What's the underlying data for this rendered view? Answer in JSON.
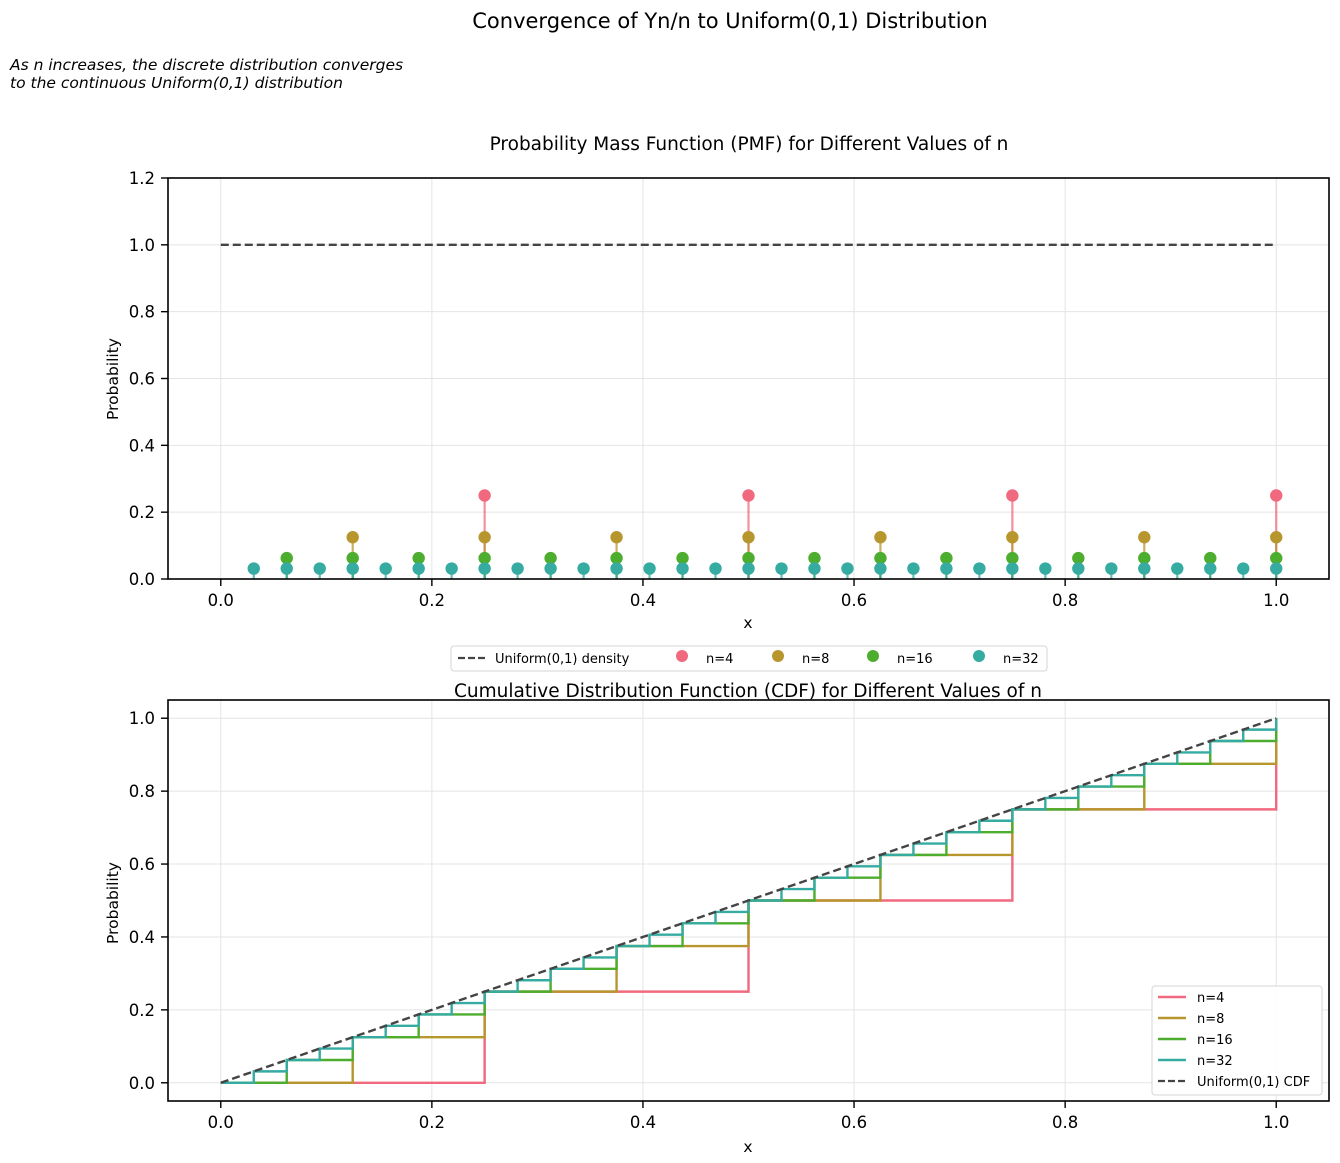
{
  "figure": {
    "title": "Convergence of Yn/n to Uniform(0,1) Distribution",
    "subtitle_line1": "As n increases, the discrete distribution converges",
    "subtitle_line2": "to the continuous Uniform(0,1) distribution"
  },
  "colors": {
    "n4": "#f0697e",
    "n8": "#b8962e",
    "n16": "#4cad2e",
    "n32": "#35aba2",
    "reference": "#444444",
    "grid": "#e4e4e4"
  },
  "chart_data": [
    {
      "type": "scatter",
      "subtype": "stem",
      "title": "Probability Mass Function (PMF) for Different Values of n",
      "xlabel": "x",
      "ylabel": "Probability",
      "xlim": [
        -0.05,
        1.05
      ],
      "ylim": [
        0,
        1.2
      ],
      "xticks": [
        "0.0",
        "0.2",
        "0.4",
        "0.6",
        "0.8",
        "1.0"
      ],
      "yticks": [
        "0.0",
        "0.2",
        "0.4",
        "0.6",
        "0.8",
        "1.0",
        "1.2"
      ],
      "grid": true,
      "legend_position": "below",
      "legend": [
        "Uniform(0,1) density",
        "n=4",
        "n=8",
        "n=16",
        "n=32"
      ],
      "reference_line": {
        "name": "Uniform(0,1) density",
        "x": [
          0,
          1
        ],
        "y": [
          1,
          1
        ],
        "style": "dashed"
      },
      "series": [
        {
          "name": "n=4",
          "n": 4,
          "x": [
            0.25,
            0.5,
            0.75,
            1.0
          ],
          "y": [
            0.25,
            0.25,
            0.25,
            0.25
          ]
        },
        {
          "name": "n=8",
          "n": 8,
          "x": [
            0.125,
            0.25,
            0.375,
            0.5,
            0.625,
            0.75,
            0.875,
            1.0
          ],
          "y": [
            0.125,
            0.125,
            0.125,
            0.125,
            0.125,
            0.125,
            0.125,
            0.125
          ]
        },
        {
          "name": "n=16",
          "n": 16,
          "x": [
            0.0625,
            0.125,
            0.1875,
            0.25,
            0.3125,
            0.375,
            0.4375,
            0.5,
            0.5625,
            0.625,
            0.6875,
            0.75,
            0.8125,
            0.875,
            0.9375,
            1.0
          ],
          "y": [
            0.0625,
            0.0625,
            0.0625,
            0.0625,
            0.0625,
            0.0625,
            0.0625,
            0.0625,
            0.0625,
            0.0625,
            0.0625,
            0.0625,
            0.0625,
            0.0625,
            0.0625,
            0.0625
          ]
        },
        {
          "name": "n=32",
          "n": 32,
          "x": [
            0.03125,
            0.0625,
            0.09375,
            0.125,
            0.15625,
            0.1875,
            0.21875,
            0.25,
            0.28125,
            0.3125,
            0.34375,
            0.375,
            0.40625,
            0.4375,
            0.46875,
            0.5,
            0.53125,
            0.5625,
            0.59375,
            0.625,
            0.65625,
            0.6875,
            0.71875,
            0.75,
            0.78125,
            0.8125,
            0.84375,
            0.875,
            0.90625,
            0.9375,
            0.96875,
            1.0
          ],
          "y": [
            0.03125,
            0.03125,
            0.03125,
            0.03125,
            0.03125,
            0.03125,
            0.03125,
            0.03125,
            0.03125,
            0.03125,
            0.03125,
            0.03125,
            0.03125,
            0.03125,
            0.03125,
            0.03125,
            0.03125,
            0.03125,
            0.03125,
            0.03125,
            0.03125,
            0.03125,
            0.03125,
            0.03125,
            0.03125,
            0.03125,
            0.03125,
            0.03125,
            0.03125,
            0.03125,
            0.03125,
            0.03125
          ]
        }
      ]
    },
    {
      "type": "line",
      "subtype": "step",
      "title": "Cumulative Distribution Function (CDF) for Different Values of n",
      "xlabel": "x",
      "ylabel": "Probability",
      "xlim": [
        -0.05,
        1.05
      ],
      "ylim": [
        -0.05,
        1.05
      ],
      "xticks": [
        "0.0",
        "0.2",
        "0.4",
        "0.6",
        "0.8",
        "1.0"
      ],
      "yticks": [
        "0.0",
        "0.2",
        "0.4",
        "0.6",
        "0.8",
        "1.0"
      ],
      "grid": true,
      "legend_position": "lower right",
      "legend": [
        "n=4",
        "n=8",
        "n=16",
        "n=32",
        "Uniform(0,1) CDF"
      ],
      "reference_line": {
        "name": "Uniform(0,1) CDF",
        "x": [
          0,
          1
        ],
        "y": [
          0,
          1
        ],
        "style": "dashed"
      },
      "series": [
        {
          "name": "n=4",
          "n": 4,
          "x": [
            0,
            0.25,
            0.5,
            0.75,
            1.0
          ],
          "y": [
            0,
            0.25,
            0.5,
            0.75,
            1.0
          ]
        },
        {
          "name": "n=8",
          "n": 8,
          "x": [
            0,
            0.125,
            0.25,
            0.375,
            0.5,
            0.625,
            0.75,
            0.875,
            1.0
          ],
          "y": [
            0,
            0.125,
            0.25,
            0.375,
            0.5,
            0.625,
            0.75,
            0.875,
            1.0
          ]
        },
        {
          "name": "n=16",
          "n": 16,
          "x": [
            0,
            0.0625,
            0.125,
            0.1875,
            0.25,
            0.3125,
            0.375,
            0.4375,
            0.5,
            0.5625,
            0.625,
            0.6875,
            0.75,
            0.8125,
            0.875,
            0.9375,
            1.0
          ],
          "y": [
            0,
            0.0625,
            0.125,
            0.1875,
            0.25,
            0.3125,
            0.375,
            0.4375,
            0.5,
            0.5625,
            0.625,
            0.6875,
            0.75,
            0.8125,
            0.875,
            0.9375,
            1.0
          ]
        },
        {
          "name": "n=32",
          "n": 32,
          "x": [
            0,
            0.03125,
            0.0625,
            0.09375,
            0.125,
            0.15625,
            0.1875,
            0.21875,
            0.25,
            0.28125,
            0.3125,
            0.34375,
            0.375,
            0.40625,
            0.4375,
            0.46875,
            0.5,
            0.53125,
            0.5625,
            0.59375,
            0.625,
            0.65625,
            0.6875,
            0.71875,
            0.75,
            0.78125,
            0.8125,
            0.84375,
            0.875,
            0.90625,
            0.9375,
            0.96875,
            1.0
          ],
          "y": [
            0,
            0.03125,
            0.0625,
            0.09375,
            0.125,
            0.15625,
            0.1875,
            0.21875,
            0.25,
            0.28125,
            0.3125,
            0.34375,
            0.375,
            0.40625,
            0.4375,
            0.46875,
            0.5,
            0.53125,
            0.5625,
            0.59375,
            0.625,
            0.65625,
            0.6875,
            0.71875,
            0.75,
            0.78125,
            0.8125,
            0.84375,
            0.875,
            0.90625,
            0.9375,
            0.96875,
            1.0
          ]
        }
      ]
    }
  ]
}
